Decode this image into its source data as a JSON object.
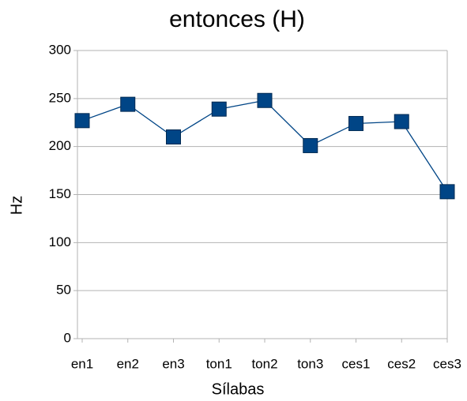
{
  "chart_data": {
    "type": "line",
    "title": "entonces (H)",
    "xlabel": "Sílabas",
    "ylabel": "Hz",
    "categories": [
      "en1",
      "en2",
      "en3",
      "ton1",
      "ton2",
      "ton3",
      "ces1",
      "ces2",
      "ces3"
    ],
    "values": [
      227,
      244,
      210,
      239,
      248,
      201,
      224,
      226,
      153
    ],
    "color": "#004586",
    "ylim": [
      0,
      300
    ],
    "yticks": [
      0,
      50,
      100,
      150,
      200,
      250,
      300
    ],
    "grid": true
  }
}
